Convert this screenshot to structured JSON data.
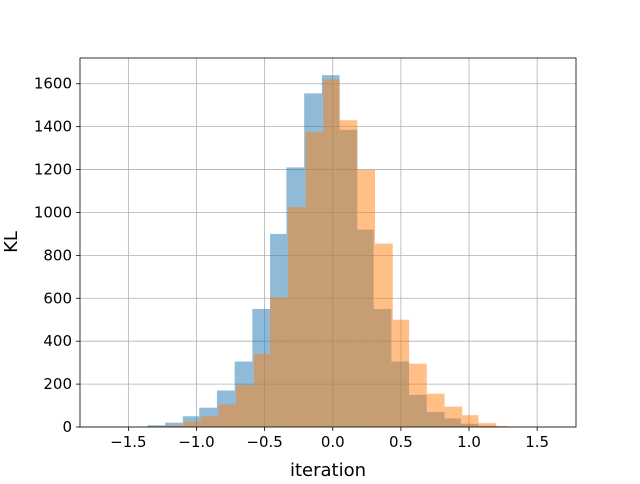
{
  "chart_data": {
    "type": "bar",
    "title": "",
    "xlabel": "iteration",
    "ylabel": "KL",
    "xlim": [
      -1.855,
      1.785
    ],
    "ylim": [
      0,
      1720
    ],
    "grid": true,
    "legend": "none",
    "x_ticks": [
      -1.5,
      -1.0,
      -0.5,
      0.0,
      0.5,
      1.0,
      1.5
    ],
    "x_tick_labels": [
      "−1.5",
      "−1.0",
      "−0.5",
      "0.0",
      "0.5",
      "1.0",
      "1.5"
    ],
    "y_ticks": [
      0,
      200,
      400,
      600,
      800,
      1000,
      1200,
      1400,
      1600
    ],
    "y_tick_labels": [
      "0",
      "200",
      "400",
      "600",
      "800",
      "1000",
      "1200",
      "1400",
      "1600"
    ],
    "series": [
      {
        "color": "#1f77b4",
        "opacity": 0.5,
        "bins": [
          {
            "x0": -1.36,
            "x1": -1.23,
            "count": 8
          },
          {
            "x0": -1.23,
            "x1": -1.1,
            "count": 20
          },
          {
            "x0": -1.1,
            "x1": -0.98,
            "count": 50
          },
          {
            "x0": -0.98,
            "x1": -0.85,
            "count": 90
          },
          {
            "x0": -0.85,
            "x1": -0.72,
            "count": 170
          },
          {
            "x0": -0.72,
            "x1": -0.59,
            "count": 305
          },
          {
            "x0": -0.59,
            "x1": -0.46,
            "count": 550
          },
          {
            "x0": -0.46,
            "x1": -0.34,
            "count": 900
          },
          {
            "x0": -0.34,
            "x1": -0.21,
            "count": 1210
          },
          {
            "x0": -0.21,
            "x1": -0.08,
            "count": 1555
          },
          {
            "x0": -0.08,
            "x1": 0.05,
            "count": 1640
          },
          {
            "x0": 0.05,
            "x1": 0.18,
            "count": 1385
          },
          {
            "x0": 0.18,
            "x1": 0.3,
            "count": 920
          },
          {
            "x0": 0.3,
            "x1": 0.43,
            "count": 550
          },
          {
            "x0": 0.43,
            "x1": 0.56,
            "count": 305
          },
          {
            "x0": 0.56,
            "x1": 0.69,
            "count": 150
          },
          {
            "x0": 0.69,
            "x1": 0.82,
            "count": 70
          },
          {
            "x0": 0.82,
            "x1": 0.94,
            "count": 40
          },
          {
            "x0": 0.94,
            "x1": 1.07,
            "count": 15
          },
          {
            "x0": 1.07,
            "x1": 1.2,
            "count": 5
          }
        ]
      },
      {
        "color": "#ff7f0e",
        "opacity": 0.5,
        "bins": [
          {
            "x0": -1.35,
            "x1": -1.22,
            "count": 3
          },
          {
            "x0": -1.22,
            "x1": -1.09,
            "count": 8
          },
          {
            "x0": -1.09,
            "x1": -0.97,
            "count": 25
          },
          {
            "x0": -0.97,
            "x1": -0.84,
            "count": 50
          },
          {
            "x0": -0.84,
            "x1": -0.71,
            "count": 105
          },
          {
            "x0": -0.71,
            "x1": -0.58,
            "count": 195
          },
          {
            "x0": -0.58,
            "x1": -0.46,
            "count": 340
          },
          {
            "x0": -0.46,
            "x1": -0.33,
            "count": 605
          },
          {
            "x0": -0.33,
            "x1": -0.2,
            "count": 1025
          },
          {
            "x0": -0.2,
            "x1": -0.07,
            "count": 1375
          },
          {
            "x0": -0.07,
            "x1": 0.05,
            "count": 1620
          },
          {
            "x0": 0.05,
            "x1": 0.18,
            "count": 1430
          },
          {
            "x0": 0.18,
            "x1": 0.31,
            "count": 1200
          },
          {
            "x0": 0.31,
            "x1": 0.44,
            "count": 855
          },
          {
            "x0": 0.44,
            "x1": 0.56,
            "count": 500
          },
          {
            "x0": 0.56,
            "x1": 0.69,
            "count": 295
          },
          {
            "x0": 0.69,
            "x1": 0.82,
            "count": 155
          },
          {
            "x0": 0.82,
            "x1": 0.95,
            "count": 95
          },
          {
            "x0": 0.95,
            "x1": 1.07,
            "count": 55
          },
          {
            "x0": 1.07,
            "x1": 1.2,
            "count": 18
          },
          {
            "x0": 1.2,
            "x1": 1.28,
            "count": 5
          }
        ]
      }
    ]
  }
}
